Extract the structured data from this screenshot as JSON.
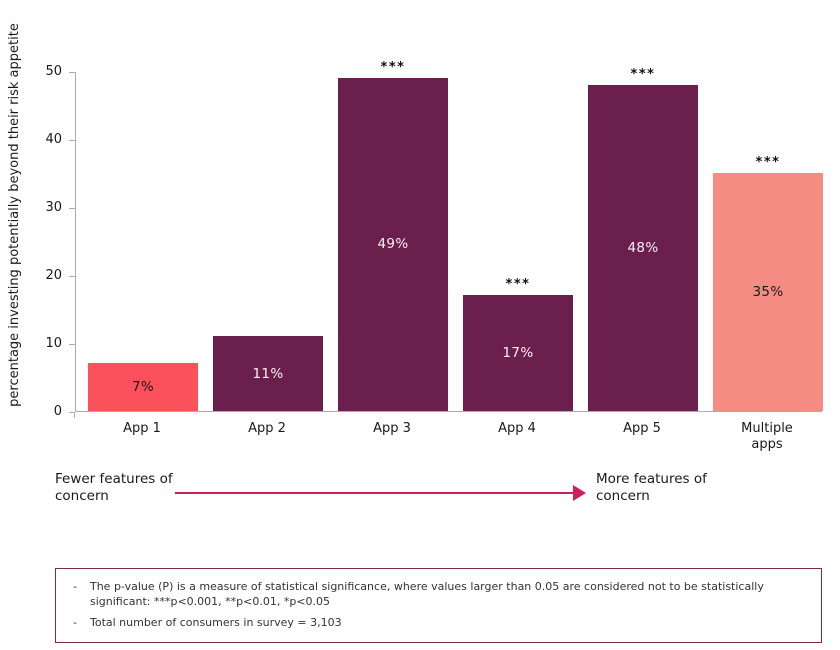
{
  "chart_data": {
    "type": "bar",
    "title": "",
    "y_axis_title": "percentage investing potentially beyond their risk appetite",
    "categories": [
      "App 1",
      "App 2",
      "App 3",
      "App 4",
      "App 5",
      "Multiple apps"
    ],
    "values": [
      7,
      11,
      49,
      17,
      48,
      35
    ],
    "value_labels": [
      "7%",
      "11%",
      "49%",
      "17%",
      "48%",
      "35%"
    ],
    "significance": [
      "",
      "",
      "***",
      "***",
      "***",
      "***"
    ],
    "bar_colors": [
      "#fb515c",
      "#6b1f4d",
      "#6b1f4d",
      "#6b1f4d",
      "#6b1f4d",
      "#f48c83"
    ],
    "value_label_colors": [
      "#1a1a1a",
      "#f5f2f2",
      "#f5f2f2",
      "#f5f2f2",
      "#f5f2f2",
      "#1a1a1a"
    ],
    "ylim": [
      0,
      50
    ],
    "yticks": [
      0,
      10,
      20,
      30,
      40,
      50
    ],
    "grid": false,
    "legend": "none",
    "axis_color": "#ababab"
  },
  "annotation": {
    "left_label": "Fewer features of concern",
    "right_label": "More features of concern",
    "arrow_color": "#d11d5d"
  },
  "footnotes": {
    "bullet": "-",
    "items": [
      "The p-value (P) is a measure of statistical significance, where values larger than 0.05 are considered not to be statistically significant: ***p<0.001, **p<0.01, *p<0.05",
      "Total number of consumers in survey = 3,103"
    ]
  }
}
